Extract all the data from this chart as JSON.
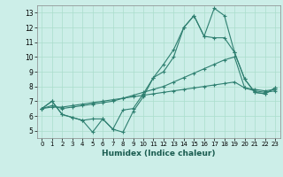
{
  "xlabel": "Humidex (Indice chaleur)",
  "bg_color": "#cceee8",
  "line_color": "#2e7f70",
  "grid_color": "#aaddcc",
  "xlim": [
    -0.5,
    23.5
  ],
  "ylim": [
    4.5,
    13.5
  ],
  "yticks": [
    5,
    6,
    7,
    8,
    9,
    10,
    11,
    12,
    13
  ],
  "xticks": [
    0,
    1,
    2,
    3,
    4,
    5,
    6,
    7,
    8,
    9,
    10,
    11,
    12,
    13,
    14,
    15,
    16,
    17,
    18,
    19,
    20,
    21,
    22,
    23
  ],
  "series": [
    [
      6.5,
      7.0,
      6.1,
      5.9,
      5.7,
      4.9,
      5.8,
      5.1,
      4.9,
      6.3,
      7.3,
      8.6,
      9.0,
      10.0,
      12.0,
      12.8,
      11.4,
      13.3,
      12.8,
      10.3,
      8.5,
      7.6,
      7.5,
      7.9
    ],
    [
      6.5,
      7.0,
      6.1,
      5.9,
      5.7,
      5.8,
      5.8,
      5.1,
      6.4,
      6.5,
      7.5,
      8.6,
      9.5,
      10.5,
      12.0,
      12.8,
      11.4,
      11.3,
      11.3,
      10.3,
      8.5,
      7.6,
      7.5,
      7.9
    ],
    [
      6.5,
      6.7,
      6.5,
      6.6,
      6.7,
      6.8,
      6.9,
      7.0,
      7.2,
      7.4,
      7.6,
      7.8,
      8.0,
      8.3,
      8.6,
      8.9,
      9.2,
      9.5,
      9.8,
      10.0,
      7.9,
      7.7,
      7.6,
      7.7
    ],
    [
      6.5,
      6.6,
      6.6,
      6.7,
      6.8,
      6.9,
      7.0,
      7.1,
      7.2,
      7.3,
      7.4,
      7.5,
      7.6,
      7.7,
      7.8,
      7.9,
      8.0,
      8.1,
      8.2,
      8.3,
      7.9,
      7.8,
      7.7,
      7.8
    ]
  ]
}
